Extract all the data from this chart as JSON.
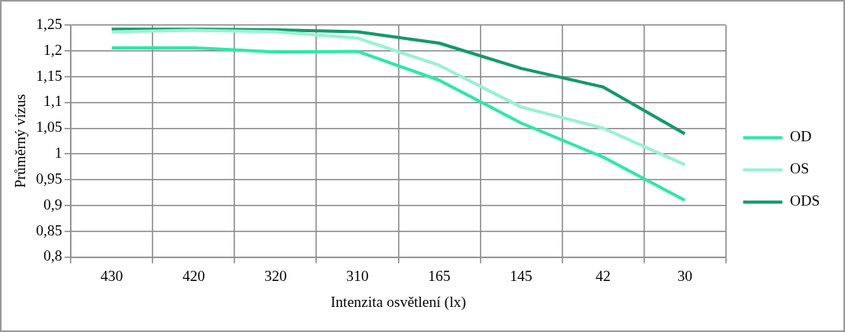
{
  "chart_data": {
    "type": "line",
    "xlabel": "Intenzita osvětlení (lx)",
    "ylabel": "Průměrný vízus",
    "categories": [
      "430",
      "420",
      "320",
      "310",
      "165",
      "145",
      "42",
      "30"
    ],
    "series": [
      {
        "name": "OD",
        "color": "#2ee8a8",
        "values": [
          1.206,
          1.206,
          1.198,
          1.199,
          1.143,
          1.06,
          0.994,
          0.91
        ]
      },
      {
        "name": "OS",
        "color": "#98f2d2",
        "values": [
          1.237,
          1.24,
          1.237,
          1.225,
          1.172,
          1.091,
          1.05,
          0.979
        ]
      },
      {
        "name": "ODS",
        "color": "#14996a",
        "values": [
          1.242,
          1.242,
          1.241,
          1.237,
          1.215,
          1.166,
          1.13,
          1.039
        ]
      }
    ],
    "ylim": [
      0.8,
      1.25
    ],
    "yticks": [
      {
        "value": 0.8,
        "label": "0,8"
      },
      {
        "value": 0.85,
        "label": "0,85"
      },
      {
        "value": 0.9,
        "label": "0,9"
      },
      {
        "value": 0.95,
        "label": "0,95"
      },
      {
        "value": 1,
        "label": "1"
      },
      {
        "value": 1.05,
        "label": "1,05"
      },
      {
        "value": 1.1,
        "label": "1,1"
      },
      {
        "value": 1.15,
        "label": "1,15"
      },
      {
        "value": 1.2,
        "label": "1,2"
      },
      {
        "value": 1.25,
        "label": "1,25"
      }
    ],
    "grid": true,
    "legend": "right",
    "marker": "none",
    "line_style": "solid"
  }
}
